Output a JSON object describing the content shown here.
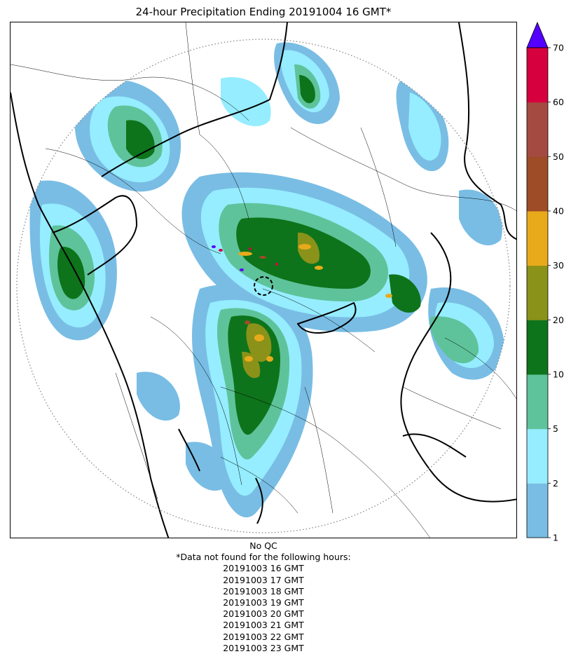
{
  "title": "24-hour Precipitation Ending 20191004 16 GMT*",
  "footer": {
    "qc_note": "No QC",
    "missing_header": "*Data not found for the following hours:",
    "missing_hours": [
      "20191003 16 GMT",
      "20191003 17 GMT",
      "20191003 18 GMT",
      "20191003 19 GMT",
      "20191003 20 GMT",
      "20191003 21 GMT",
      "20191003 22 GMT",
      "20191003 23 GMT"
    ]
  },
  "colorbar": {
    "levels": [
      1,
      2,
      5,
      10,
      20,
      30,
      40,
      50,
      60,
      70
    ],
    "colors": [
      "#79bde4",
      "#95edff",
      "#5ec39a",
      "#0d741b",
      "#8a9219",
      "#e8aa1b",
      "#9e4c27",
      "#a54a40",
      "#d6003f"
    ],
    "extend_max_color": "#5500ff",
    "tick_labels": [
      "1",
      "2",
      "5",
      "10",
      "20",
      "30",
      "40",
      "50",
      "60",
      "70"
    ]
  },
  "map": {
    "range_ring": "dotted circle",
    "radar_marker": "dashed circle",
    "boundary_color": "#000000"
  }
}
